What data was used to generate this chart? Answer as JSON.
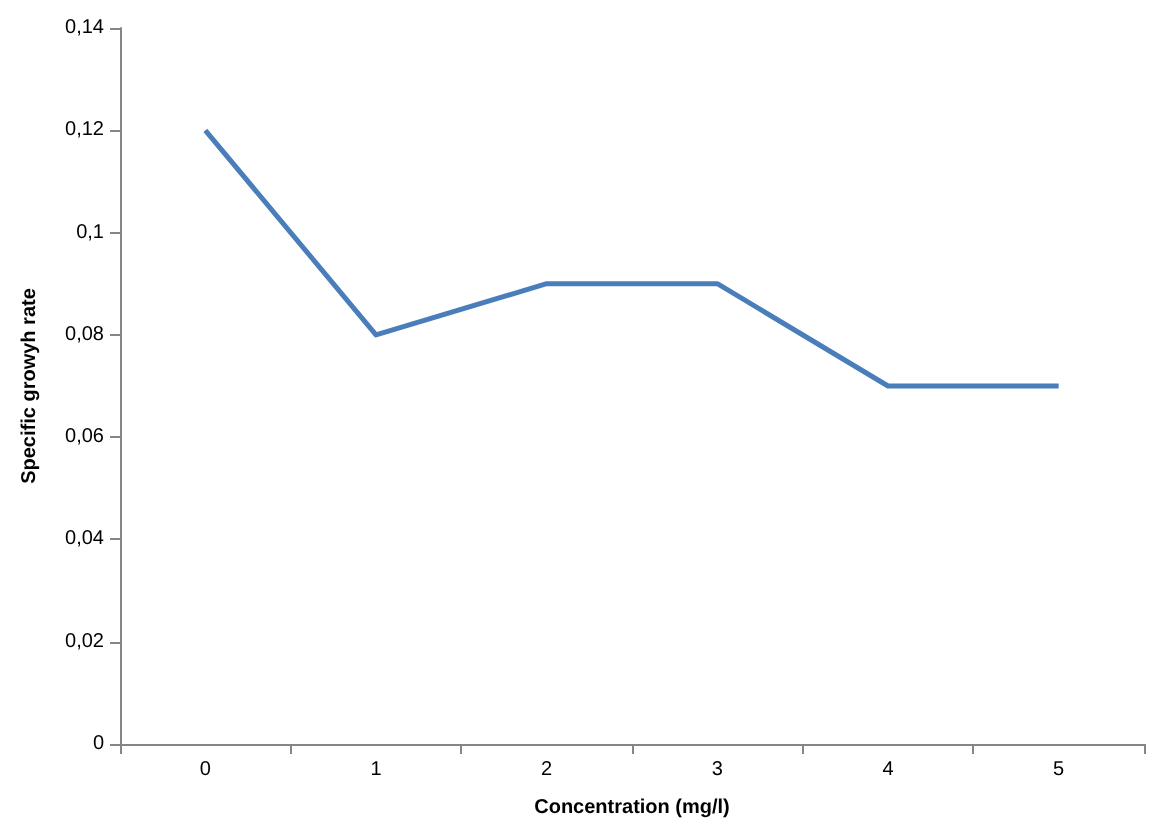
{
  "chart_data": {
    "type": "line",
    "xlabel": "Concentration (mg/l)",
    "ylabel": "Specific growyh rate",
    "categories": [
      "0",
      "1",
      "2",
      "3",
      "4",
      "5"
    ],
    "series": [
      {
        "color": "#4a7ebb",
        "values": [
          0.12,
          0.08,
          0.09,
          0.09,
          0.07,
          0.07
        ]
      }
    ],
    "ylim": [
      0,
      0.14
    ],
    "yticks": [
      {
        "value": 0,
        "label": "0"
      },
      {
        "value": 0.02,
        "label": "0,02"
      },
      {
        "value": 0.04,
        "label": "0,04"
      },
      {
        "value": 0.06,
        "label": "0,06"
      },
      {
        "value": 0.08,
        "label": "0,08"
      },
      {
        "value": 0.1,
        "label": "0,1"
      },
      {
        "value": 0.12,
        "label": "0,12"
      },
      {
        "value": 0.14,
        "label": "0,14"
      }
    ],
    "grid": false,
    "marker": "none",
    "line_style": "solid"
  }
}
